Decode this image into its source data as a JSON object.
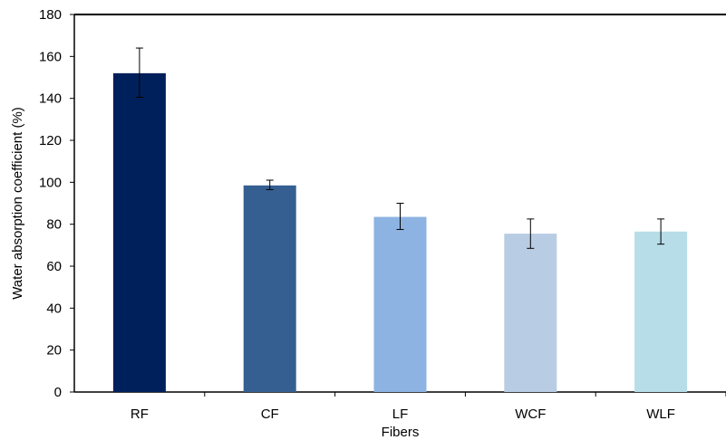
{
  "chart_data": {
    "type": "bar",
    "title": "",
    "xlabel": "Fibers",
    "ylabel": "Water absorption coefficient (%)",
    "ylim": [
      0,
      180
    ],
    "yticks": [
      0,
      20,
      40,
      60,
      80,
      100,
      120,
      140,
      160,
      180
    ],
    "grid": false,
    "legend": "none",
    "categories": [
      "RF",
      "CF",
      "LF",
      "WCF",
      "WLF"
    ],
    "values": [
      152,
      98.5,
      83.5,
      75.5,
      76.5
    ],
    "error_low": [
      140.5,
      96.5,
      77.5,
      68.5,
      70.5
    ],
    "error_high": [
      164,
      101,
      90,
      82.5,
      82.5
    ],
    "colors": [
      "#00205b",
      "#355f91",
      "#8db3e2",
      "#b8cce4",
      "#b7dde8"
    ]
  }
}
